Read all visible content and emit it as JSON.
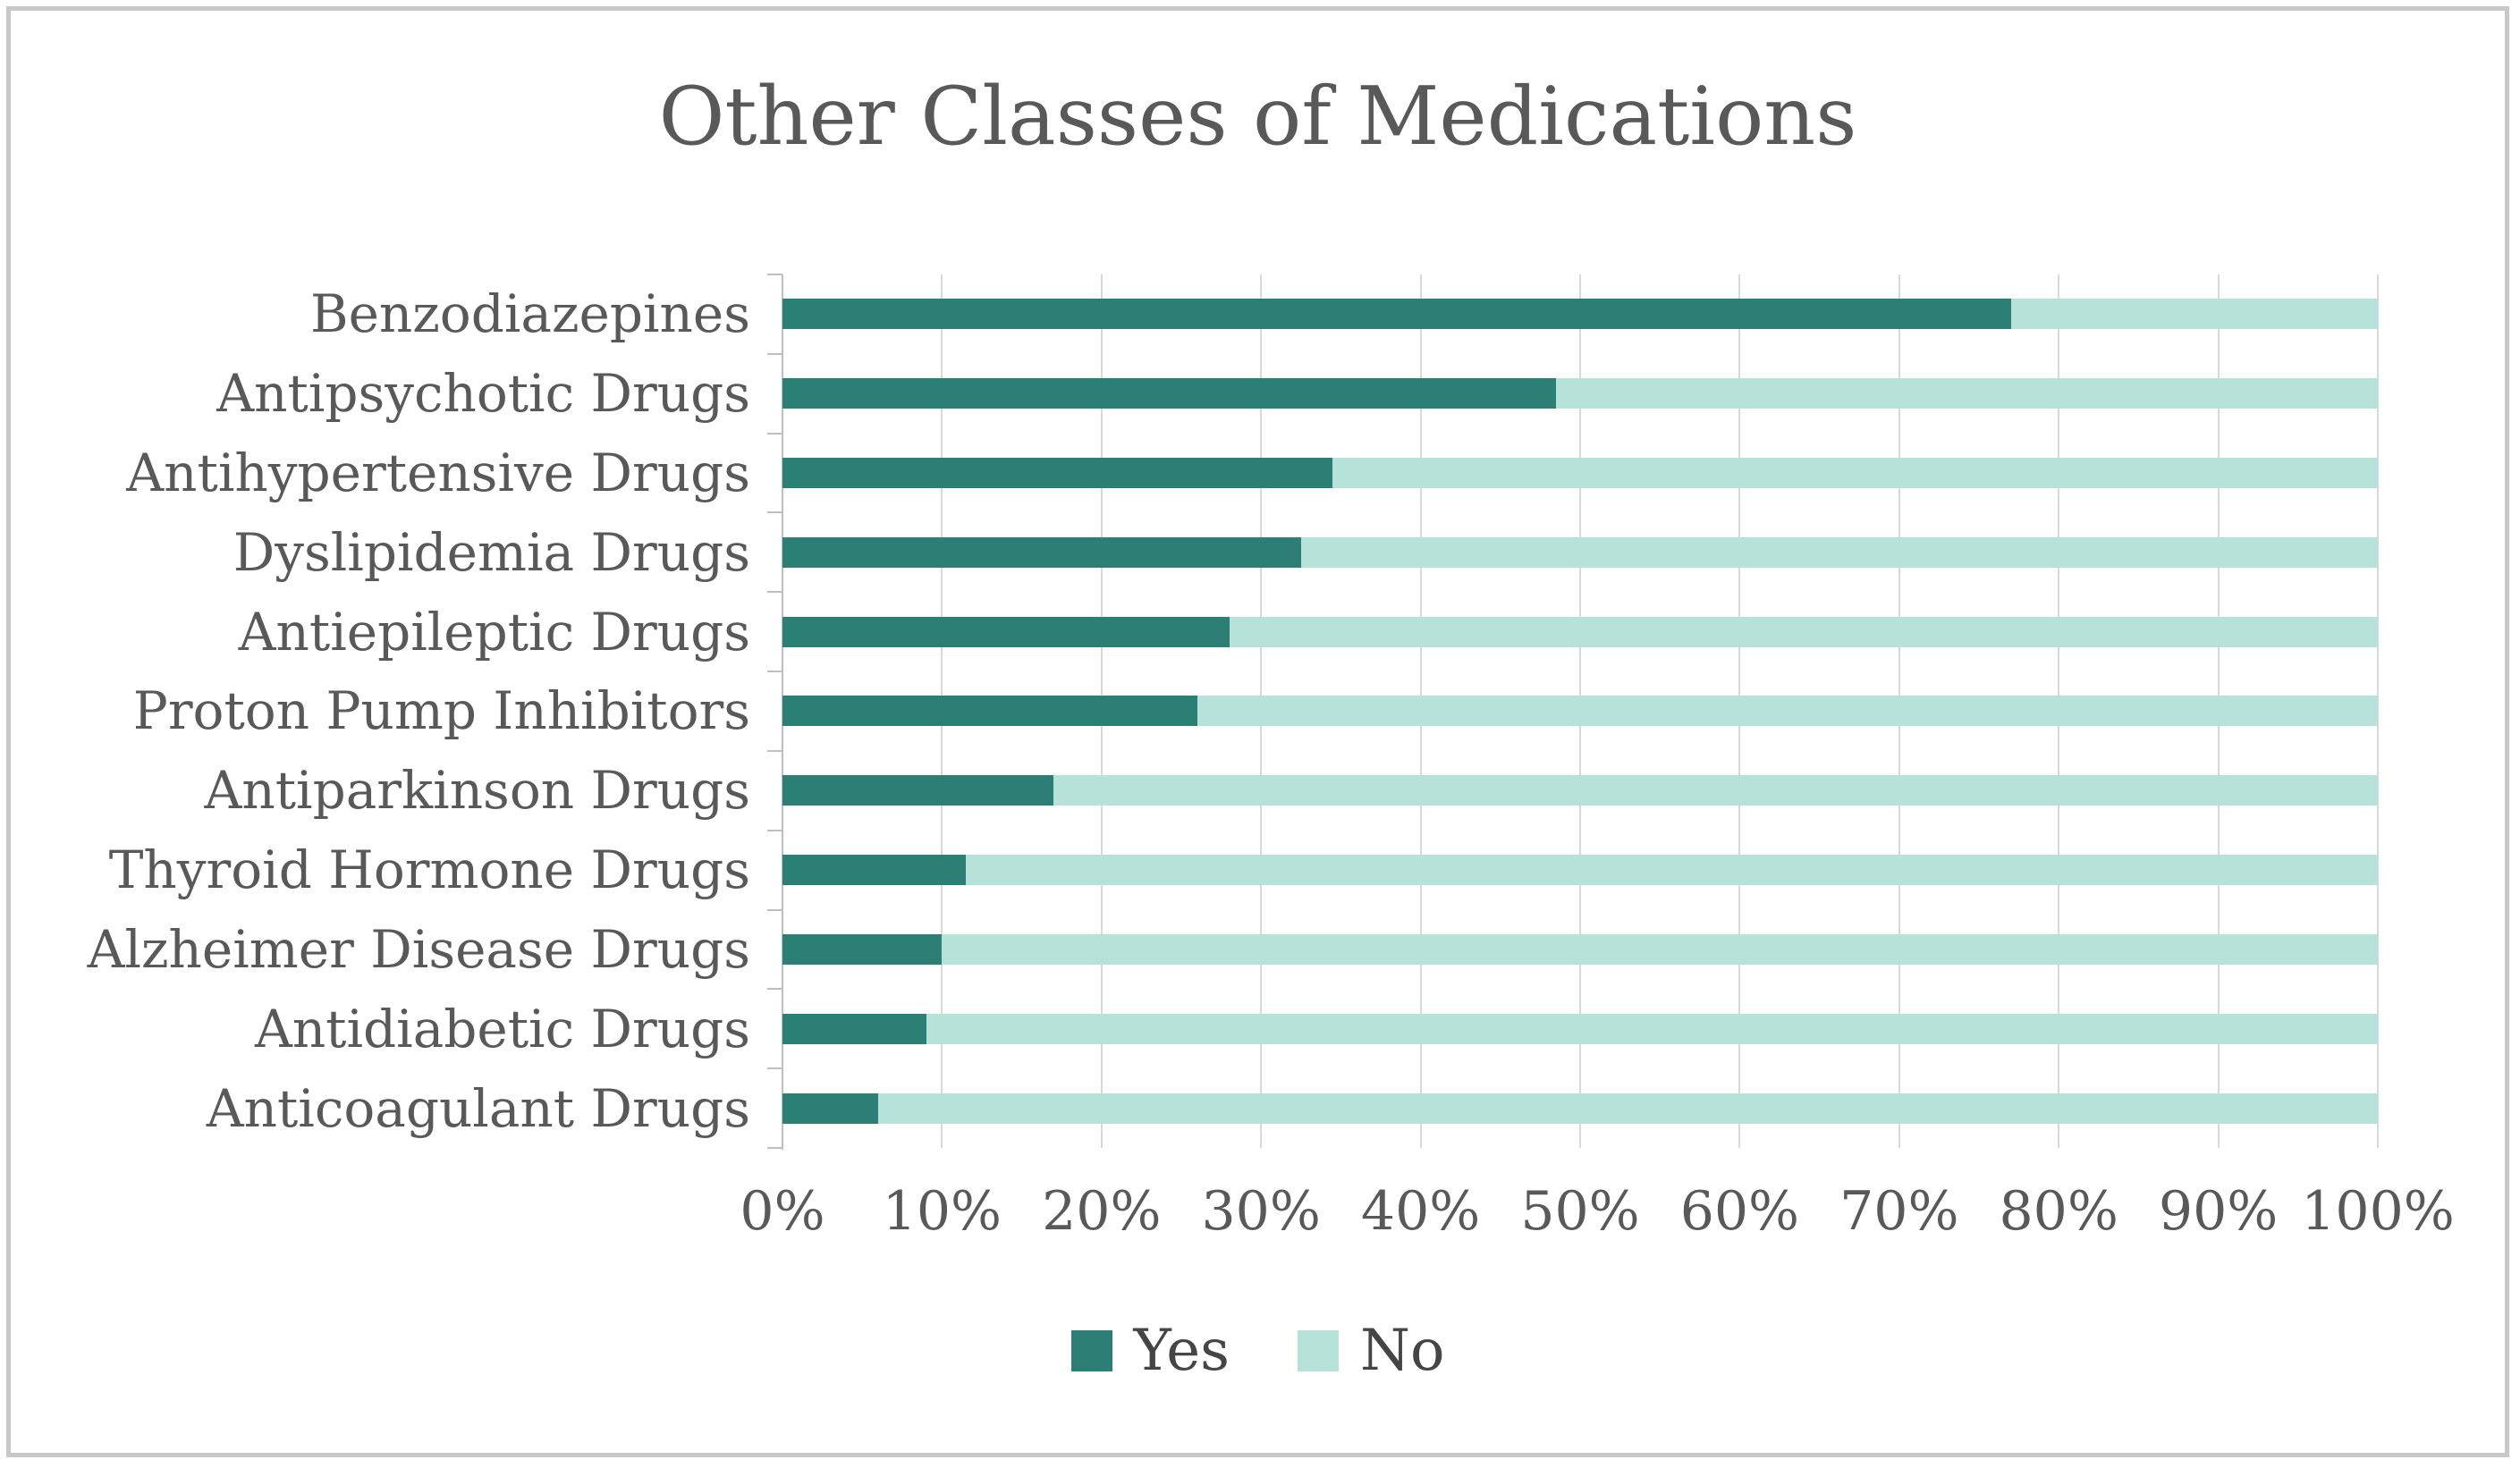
{
  "colors": {
    "yes": "#2b7f75",
    "no": "#b6e2da",
    "text": "#595959",
    "gridline": "#d9d9d9",
    "axis_line": "#bfbfbf",
    "frame_border": "#c8c8c8",
    "background": "#ffffff"
  },
  "chart_data": {
    "type": "bar",
    "orientation": "horizontal",
    "stacked": true,
    "title": "Other Classes of Medications",
    "categories": [
      "Benzodiazepines",
      "Antipsychotic Drugs",
      "Antihypertensive Drugs",
      "Dyslipidemia Drugs",
      "Antiepileptic Drugs",
      "Proton Pump Inhibitors",
      "Antiparkinson Drugs",
      "Thyroid Hormone Drugs",
      "Alzheimer Disease Drugs",
      "Antidiabetic Drugs",
      "Anticoagulant Drugs"
    ],
    "series": [
      {
        "name": "Yes",
        "color": "#2b7f75",
        "values": [
          77,
          48.5,
          34.5,
          32.5,
          28,
          26,
          17,
          11.5,
          10,
          9,
          6
        ]
      },
      {
        "name": "No",
        "color": "#b6e2da",
        "values": [
          23,
          51.5,
          65.5,
          67.5,
          72,
          74,
          83,
          88.5,
          90,
          91,
          94
        ]
      }
    ],
    "xlabel": "",
    "ylabel": "",
    "x_axis": {
      "min": 0,
      "max": 100,
      "tick_labels": [
        "0%",
        "10%",
        "20%",
        "30%",
        "40%",
        "50%",
        "60%",
        "70%",
        "80%",
        "90%",
        "100%"
      ]
    },
    "grid": true,
    "legend_position": "bottom"
  }
}
